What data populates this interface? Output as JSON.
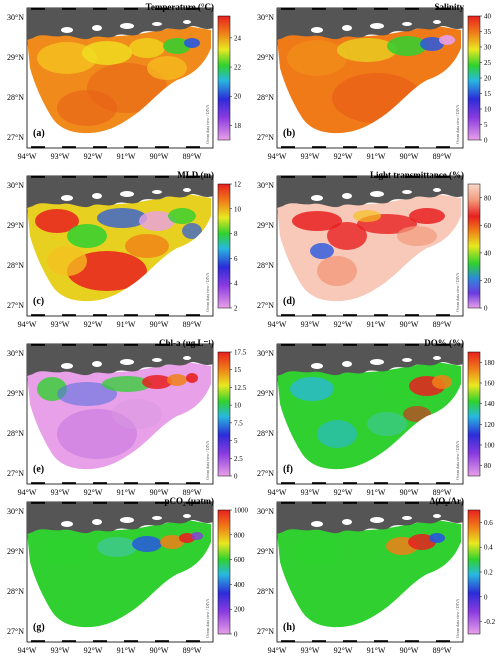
{
  "figure": {
    "x_ticks": [
      "94°W",
      "93°W",
      "92°W",
      "91°W",
      "90°W",
      "89°W"
    ],
    "y_ticks": [
      "30°N",
      "29°N",
      "28°N",
      "27°N"
    ],
    "watermark": "Ocean data view / DIVA"
  },
  "panels": [
    {
      "letter": "(a)",
      "title": "Temperature (°C)",
      "ticks": [
        "24",
        "22",
        "20",
        "18"
      ],
      "scheme": "temperature",
      "colorbar_range": [
        17,
        25.5
      ],
      "colorbar_tick_values": [
        24,
        22,
        20,
        18
      ]
    },
    {
      "letter": "(b)",
      "title": "Salinity",
      "ticks": [
        "40",
        "35",
        "30",
        "25",
        "20",
        "15",
        "10",
        "5",
        "0"
      ],
      "scheme": "salinity",
      "colorbar_range": [
        0,
        40
      ],
      "colorbar_tick_values": [
        40,
        35,
        30,
        25,
        20,
        15,
        10,
        5,
        0
      ]
    },
    {
      "letter": "(c)",
      "title": "MLD (m)",
      "ticks": [
        "12",
        "10",
        "8",
        "6",
        "4",
        "2"
      ],
      "scheme": "mld",
      "colorbar_range": [
        2,
        12
      ],
      "colorbar_tick_values": [
        12,
        10,
        8,
        6,
        4,
        2
      ]
    },
    {
      "letter": "(d)",
      "title": "Light transmittance (%)",
      "ticks": [
        "80",
        "60",
        "40",
        "20",
        "0"
      ],
      "scheme": "light",
      "colorbar_range": [
        0,
        90
      ],
      "colorbar_tick_values": [
        80,
        60,
        40,
        20,
        0
      ]
    },
    {
      "letter": "(e)",
      "title": "Chl-a (ug L⁻¹)",
      "ticks": [
        "17.5",
        "15",
        "12.5",
        "10",
        "7.5",
        "5",
        "2.5",
        "0"
      ],
      "scheme": "chla",
      "colorbar_range": [
        0,
        17.5
      ],
      "colorbar_tick_values": [
        17.5,
        15,
        12.5,
        10,
        7.5,
        5,
        2.5,
        0
      ]
    },
    {
      "letter": "(f)",
      "title": "DO% (%)",
      "ticks": [
        "180",
        "160",
        "140",
        "120",
        "100",
        "80"
      ],
      "scheme": "do",
      "colorbar_range": [
        70,
        190
      ],
      "colorbar_tick_values": [
        180,
        160,
        140,
        120,
        100,
        80
      ]
    },
    {
      "letter": "(g)",
      "title": "pCO₂ (μatm)",
      "ticks": [
        "1000",
        "800",
        "600",
        "400",
        "200",
        "0"
      ],
      "scheme": "pco2",
      "colorbar_range": [
        0,
        1000
      ],
      "colorbar_tick_values": [
        1000,
        800,
        600,
        400,
        200,
        0
      ]
    },
    {
      "letter": "(h)",
      "title": "Δ(O₂/Ar)",
      "ticks": [
        "0.6",
        "0.4",
        "0.2",
        "0",
        "-0.2"
      ],
      "scheme": "dox",
      "colorbar_range": [
        -0.3,
        0.7
      ],
      "colorbar_tick_values": [
        0.6,
        0.4,
        0.2,
        0,
        -0.2
      ]
    }
  ]
}
